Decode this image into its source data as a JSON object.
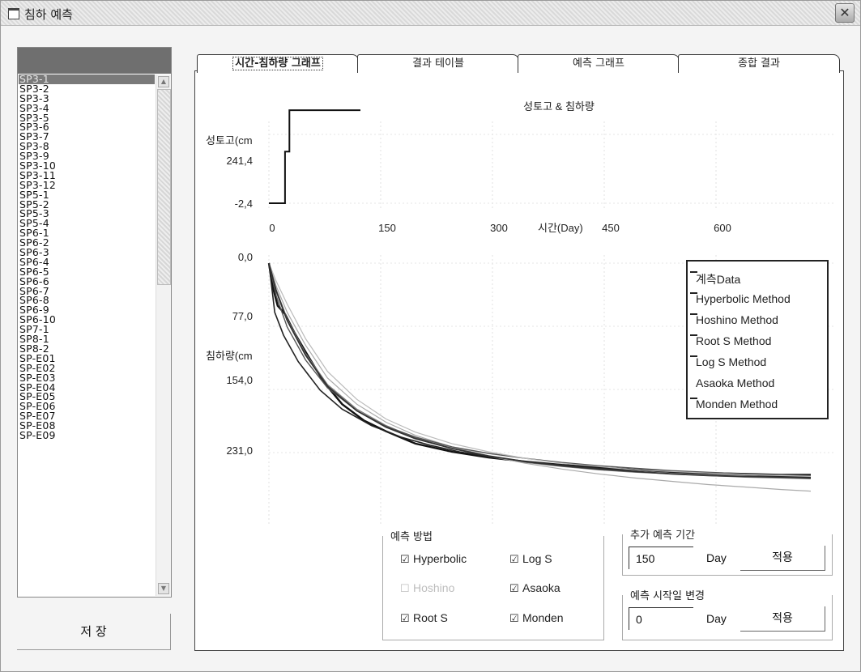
{
  "window": {
    "title": "침하 예측"
  },
  "sidebar": {
    "items": [
      "SP3-1",
      "SP3-2",
      "SP3-3",
      "SP3-4",
      "SP3-5",
      "SP3-6",
      "SP3-7",
      "SP3-8",
      "SP3-9",
      "SP3-10",
      "SP3-11",
      "SP3-12",
      "SP5-1",
      "SP5-2",
      "SP5-3",
      "SP5-4",
      "SP6-1",
      "SP6-2",
      "SP6-3",
      "SP6-4",
      "SP6-5",
      "SP6-6",
      "SP6-7",
      "SP6-8",
      "SP6-9",
      "SP6-10",
      "SP7-1",
      "SP8-1",
      "SP8-2",
      "SP-E01",
      "SP-E02",
      "SP-E03",
      "SP-E04",
      "SP-E05",
      "SP-E06",
      "SP-E07",
      "SP-E08",
      "SP-E09"
    ],
    "selected_index": 0,
    "save_label": "저 장"
  },
  "tabs": [
    "시간-침하량 그래프",
    "결과 테이블",
    "예측 그래프",
    "종합 결과"
  ],
  "active_tab": 0,
  "chart_data": {
    "type": "line",
    "title": "성토고 & 침하량",
    "top_panel": {
      "ylabel": "성토고(cm",
      "y_ticks": [
        "241,4",
        "-2,4"
      ],
      "y_range": [
        -2.4,
        290
      ],
      "x_ticks": [
        "0",
        "150",
        "300",
        "450",
        "600"
      ],
      "xlabel": "시간(Day)",
      "series": [
        {
          "name": "성토고",
          "x": [
            0,
            22,
            22,
            28,
            28,
            125
          ],
          "y": [
            -2.4,
            -2.4,
            160,
            160,
            290,
            290
          ]
        }
      ]
    },
    "bottom_panel": {
      "ylabel": "침하량(cm",
      "y_ticks": [
        "0,0",
        "77,0",
        "154,0",
        "231,0"
      ],
      "y_range": [
        0,
        308
      ],
      "x_range": [
        0,
        740
      ],
      "series": [
        {
          "name": "계측Data",
          "x": [
            0,
            5,
            12,
            22,
            35,
            50,
            75,
            100,
            130,
            160,
            200,
            250,
            300,
            350,
            400,
            450,
            500,
            550,
            600,
            650,
            700,
            740
          ],
          "y": [
            0,
            28,
            52,
            62,
            85,
            108,
            145,
            172,
            192,
            205,
            220,
            230,
            237,
            242,
            246,
            249,
            252,
            254,
            256,
            257,
            258,
            258
          ]
        },
        {
          "name": "Hyperbolic Method",
          "x": [
            0,
            10,
            25,
            50,
            80,
            120,
            160,
            200,
            250,
            300,
            350,
            400,
            450,
            500,
            550,
            600,
            650,
            700,
            740
          ],
          "y": [
            0,
            32,
            68,
            110,
            148,
            178,
            198,
            213,
            226,
            236,
            243,
            248,
            252,
            255,
            257,
            259,
            261,
            262,
            263
          ]
        },
        {
          "name": "Hoshino Method",
          "x": [
            0,
            8,
            20,
            40,
            70,
            100,
            140,
            180,
            220,
            260,
            300,
            350,
            400,
            450,
            500,
            550,
            600,
            650,
            700,
            740
          ],
          "y": [
            0,
            60,
            88,
            120,
            155,
            178,
            198,
            212,
            222,
            230,
            236,
            242,
            246,
            250,
            252,
            255,
            257,
            258,
            260,
            261
          ]
        },
        {
          "name": "Root S Method",
          "x": [
            0,
            10,
            25,
            50,
            80,
            120,
            160,
            200,
            250,
            300,
            350,
            400,
            450,
            500,
            550,
            600,
            650,
            700,
            740
          ],
          "y": [
            0,
            28,
            60,
            100,
            140,
            172,
            194,
            210,
            224,
            235,
            244,
            251,
            257,
            262,
            266,
            270,
            273,
            276,
            278
          ]
        },
        {
          "name": "Log S Method",
          "x": [
            0,
            10,
            25,
            50,
            80,
            120,
            160,
            200,
            250,
            300,
            350,
            400,
            450,
            500,
            550,
            600,
            650,
            700,
            740
          ],
          "y": [
            0,
            40,
            78,
            118,
            152,
            180,
            199,
            212,
            224,
            232,
            238,
            243,
            247,
            250,
            253,
            255,
            257,
            258,
            259
          ]
        },
        {
          "name": "Asaoka Method",
          "x": [
            0,
            10,
            25,
            50,
            80,
            120,
            160,
            200,
            250,
            300,
            350,
            400,
            450,
            500,
            550,
            600,
            650,
            700,
            740
          ],
          "y": [
            0,
            22,
            50,
            92,
            132,
            166,
            190,
            206,
            220,
            230,
            238,
            244,
            248,
            252,
            254,
            256,
            258,
            259,
            260
          ]
        },
        {
          "name": "Monden Method",
          "x": [
            0,
            10,
            25,
            50,
            80,
            120,
            160,
            200,
            250,
            300,
            350,
            400,
            450,
            500,
            550,
            600,
            650,
            700,
            740
          ],
          "y": [
            0,
            34,
            70,
            112,
            150,
            180,
            200,
            214,
            226,
            235,
            242,
            247,
            251,
            254,
            257,
            259,
            260,
            261,
            262
          ]
        }
      ]
    },
    "legend_position": "right",
    "grid": true
  },
  "prediction": {
    "group_label": "예측 방법",
    "methods": [
      {
        "label": "Hyperbolic",
        "checked": true,
        "enabled": true,
        "mark": "☑"
      },
      {
        "label": "Hoshino",
        "checked": false,
        "enabled": false,
        "mark": "☐"
      },
      {
        "label": "Root S",
        "checked": true,
        "enabled": true,
        "mark": "☑"
      },
      {
        "label": "Log S",
        "checked": true,
        "enabled": true,
        "mark": "☑"
      },
      {
        "label": "Asaoka",
        "checked": true,
        "enabled": true,
        "mark": "☑"
      },
      {
        "label": "Monden",
        "checked": true,
        "enabled": true,
        "mark": "☑"
      }
    ]
  },
  "extra_period": {
    "label": "추가 예측 기간",
    "value": "150",
    "unit": "Day",
    "apply_label": "적용"
  },
  "start_change": {
    "label": "예측 시작일 변경",
    "value": "0",
    "unit": "Day",
    "apply_label": "적용"
  }
}
